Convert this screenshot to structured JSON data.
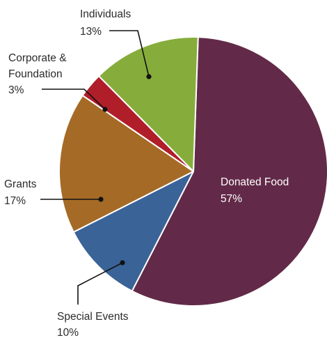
{
  "chart_data": {
    "type": "pie",
    "title": "",
    "slices": [
      {
        "label": "Donated Food",
        "value": 57,
        "value_label": "57%",
        "color": "#622a48"
      },
      {
        "label": "Special Events",
        "value": 10,
        "value_label": "10%",
        "color": "#3a6398"
      },
      {
        "label": "Grants",
        "value": 17,
        "value_label": "17%",
        "color": "#a56a26"
      },
      {
        "label": "Corporate & Foundation",
        "value": 3,
        "value_label": "3%",
        "color": "#b01e2a"
      },
      {
        "label": "Individuals",
        "value": 13,
        "value_label": "13%",
        "color": "#86ad3b"
      }
    ]
  }
}
